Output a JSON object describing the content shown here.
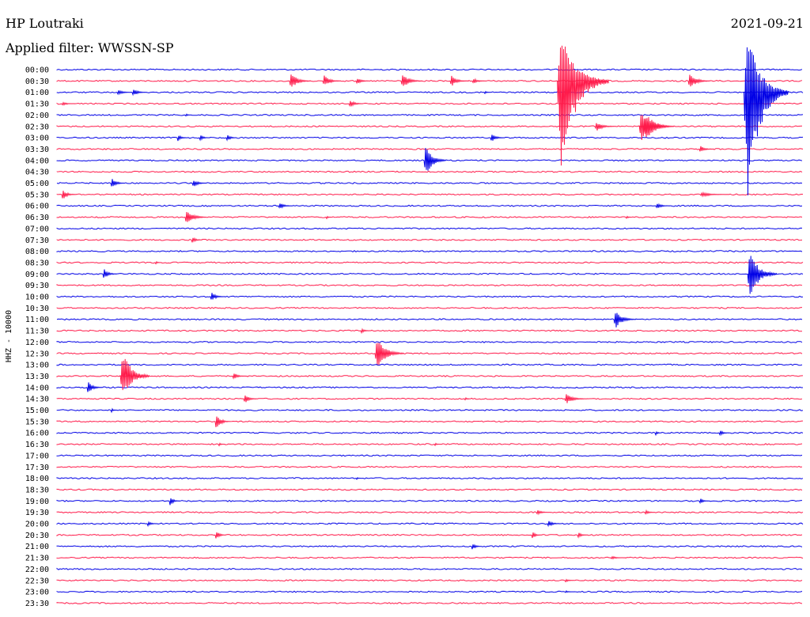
{
  "header": {
    "station": "HP Loutraki",
    "filter": "Applied filter: WWSSN-SP",
    "date": "2021-09-21"
  },
  "chart_data": {
    "type": "line",
    "ylabel": "HHZ - 10000",
    "colors": [
      "#0000e6",
      "#ff1a4a"
    ],
    "rows": [
      {
        "label": "00:00",
        "events": []
      },
      {
        "label": "00:30",
        "events": [
          {
            "x": 0.31,
            "a": 14,
            "d": 0.03
          },
          {
            "x": 0.355,
            "a": 10,
            "d": 0.025
          },
          {
            "x": 0.4,
            "a": 5,
            "d": 0.02
          },
          {
            "x": 0.46,
            "a": 13,
            "d": 0.03
          },
          {
            "x": 0.525,
            "a": 10,
            "d": 0.025
          },
          {
            "x": 0.555,
            "a": 5,
            "d": 0.02
          },
          {
            "x": 0.845,
            "a": 14,
            "d": 0.03
          }
        ]
      },
      {
        "label": "01:00",
        "events": [
          {
            "x": 0.08,
            "a": 5,
            "d": 0.02
          },
          {
            "x": 0.1,
            "a": 7,
            "d": 0.02
          },
          {
            "x": 0.57,
            "a": 3,
            "d": 0.01
          }
        ]
      },
      {
        "label": "01:30",
        "events": [
          {
            "x": 0.005,
            "a": 3,
            "d": 0.02
          },
          {
            "x": 0.39,
            "a": 7,
            "d": 0.02
          }
        ]
      },
      {
        "label": "02:00",
        "events": [
          {
            "x": 0.17,
            "a": 3,
            "d": 0.01
          }
        ]
      },
      {
        "label": "02:30",
        "events": [
          {
            "x": 0.72,
            "a": 8,
            "d": 0.03
          },
          {
            "x": 0.785,
            "a": 25,
            "d": 0.04
          }
        ]
      },
      {
        "label": "03:00",
        "events": [
          {
            "x": 0.16,
            "a": 6,
            "d": 0.015
          },
          {
            "x": 0.19,
            "a": 5,
            "d": 0.015
          },
          {
            "x": 0.225,
            "a": 6,
            "d": 0.015
          },
          {
            "x": 0.58,
            "a": 7,
            "d": 0.02
          }
        ]
      },
      {
        "label": "03:30",
        "events": [
          {
            "x": 0.86,
            "a": 6,
            "d": 0.02
          }
        ]
      },
      {
        "label": "04:00",
        "events": [
          {
            "x": 0.49,
            "a": 30,
            "d": 0.03
          }
        ]
      },
      {
        "label": "04:30",
        "events": []
      },
      {
        "label": "05:00",
        "events": [
          {
            "x": 0.07,
            "a": 9,
            "d": 0.02
          },
          {
            "x": 0.18,
            "a": 7,
            "d": 0.02
          }
        ]
      },
      {
        "label": "05:30",
        "events": [
          {
            "x": 0.005,
            "a": 9,
            "d": 0.02
          },
          {
            "x": 0.86,
            "a": 4,
            "d": 0.04
          }
        ]
      },
      {
        "label": "06:00",
        "events": [
          {
            "x": 0.295,
            "a": 6,
            "d": 0.02
          },
          {
            "x": 0.8,
            "a": 5,
            "d": 0.02
          }
        ]
      },
      {
        "label": "06:30",
        "events": [
          {
            "x": 0.17,
            "a": 14,
            "d": 0.03
          },
          {
            "x": 0.36,
            "a": 3,
            "d": 0.01
          },
          {
            "x": 0.76,
            "a": 3,
            "d": 0.01
          }
        ]
      },
      {
        "label": "07:00",
        "events": []
      },
      {
        "label": "07:30",
        "events": [
          {
            "x": 0.18,
            "a": 6,
            "d": 0.015
          }
        ]
      },
      {
        "label": "08:00",
        "events": []
      },
      {
        "label": "08:30",
        "events": [
          {
            "x": 0.13,
            "a": 3,
            "d": 0.01
          }
        ]
      },
      {
        "label": "09:00",
        "events": [
          {
            "x": 0.06,
            "a": 9,
            "d": 0.02
          }
        ]
      },
      {
        "label": "09:30",
        "events": []
      },
      {
        "label": "10:00",
        "events": [
          {
            "x": 0.205,
            "a": 8,
            "d": 0.02
          }
        ]
      },
      {
        "label": "10:30",
        "events": []
      },
      {
        "label": "11:00",
        "events": [
          {
            "x": 0.745,
            "a": 16,
            "d": 0.03
          }
        ]
      },
      {
        "label": "11:30",
        "events": [
          {
            "x": 0.405,
            "a": 4,
            "d": 0.015
          }
        ]
      },
      {
        "label": "12:00",
        "events": []
      },
      {
        "label": "12:30",
        "events": [
          {
            "x": 0.425,
            "a": 28,
            "d": 0.04
          }
        ]
      },
      {
        "label": "13:00",
        "events": []
      },
      {
        "label": "13:30",
        "events": [
          {
            "x": 0.235,
            "a": 6,
            "d": 0.02
          }
        ]
      },
      {
        "label": "14:00",
        "events": [
          {
            "x": 0.04,
            "a": 12,
            "d": 0.02
          }
        ]
      },
      {
        "label": "14:30",
        "events": [
          {
            "x": 0.25,
            "a": 8,
            "d": 0.02
          },
          {
            "x": 0.545,
            "a": 3,
            "d": 0.01
          },
          {
            "x": 0.68,
            "a": 9,
            "d": 0.03
          }
        ]
      },
      {
        "label": "15:00",
        "events": [
          {
            "x": 0.07,
            "a": 4,
            "d": 0.01
          }
        ]
      },
      {
        "label": "15:30",
        "events": [
          {
            "x": 0.21,
            "a": 14,
            "d": 0.02
          }
        ]
      },
      {
        "label": "16:00",
        "events": [
          {
            "x": 0.8,
            "a": 4,
            "d": 0.01
          },
          {
            "x": 0.885,
            "a": 5,
            "d": 0.015
          }
        ]
      },
      {
        "label": "16:30",
        "events": [
          {
            "x": 0.215,
            "a": 3,
            "d": 0.01
          },
          {
            "x": 0.505,
            "a": 3,
            "d": 0.01
          }
        ]
      },
      {
        "label": "17:00",
        "events": []
      },
      {
        "label": "17:30",
        "events": []
      },
      {
        "label": "18:00",
        "events": [
          {
            "x": 0.4,
            "a": 2,
            "d": 0.01
          }
        ]
      },
      {
        "label": "18:30",
        "events": []
      },
      {
        "label": "19:00",
        "events": [
          {
            "x": 0.15,
            "a": 8,
            "d": 0.015
          },
          {
            "x": 0.86,
            "a": 5,
            "d": 0.015
          }
        ]
      },
      {
        "label": "19:30",
        "events": [
          {
            "x": 0.64,
            "a": 4,
            "d": 0.02
          },
          {
            "x": 0.785,
            "a": 4,
            "d": 0.015
          }
        ]
      },
      {
        "label": "20:00",
        "events": [
          {
            "x": 0.12,
            "a": 4,
            "d": 0.015
          },
          {
            "x": 0.655,
            "a": 5,
            "d": 0.02
          }
        ]
      },
      {
        "label": "20:30",
        "events": [
          {
            "x": 0.21,
            "a": 8,
            "d": 0.015
          },
          {
            "x": 0.635,
            "a": 6,
            "d": 0.015
          },
          {
            "x": 0.695,
            "a": 5,
            "d": 0.015
          }
        ]
      },
      {
        "label": "21:00",
        "events": [
          {
            "x": 0.555,
            "a": 6,
            "d": 0.015
          }
        ]
      },
      {
        "label": "21:30",
        "events": [
          {
            "x": 0.74,
            "a": 3,
            "d": 0.02
          }
        ]
      },
      {
        "label": "22:00",
        "events": []
      },
      {
        "label": "22:30",
        "events": [
          {
            "x": 0.68,
            "a": 3,
            "d": 0.015
          }
        ]
      },
      {
        "label": "23:00",
        "events": [
          {
            "x": 0.68,
            "a": 2,
            "d": 0.015
          }
        ]
      },
      {
        "label": "23:30",
        "events": []
      }
    ],
    "big_events": [
      {
        "x": 0.67,
        "row": 1.0,
        "up": 80,
        "down": 160,
        "d": 0.07,
        "color": "#ff1a4a"
      },
      {
        "x": 0.78,
        "row": 5.0,
        "up": 30,
        "down": 30,
        "d": 0.04,
        "color": "#ff1a4a"
      },
      {
        "x": 0.92,
        "row": 2.0,
        "up": 110,
        "down": 190,
        "d": 0.06,
        "color": "#0000e6"
      },
      {
        "x": 0.925,
        "row": 18.0,
        "up": 40,
        "down": 45,
        "d": 0.04,
        "color": "#0000e6"
      },
      {
        "x": 0.085,
        "row": 27.0,
        "up": 48,
        "down": 40,
        "d": 0.04,
        "color": "#ff1a4a"
      }
    ]
  }
}
